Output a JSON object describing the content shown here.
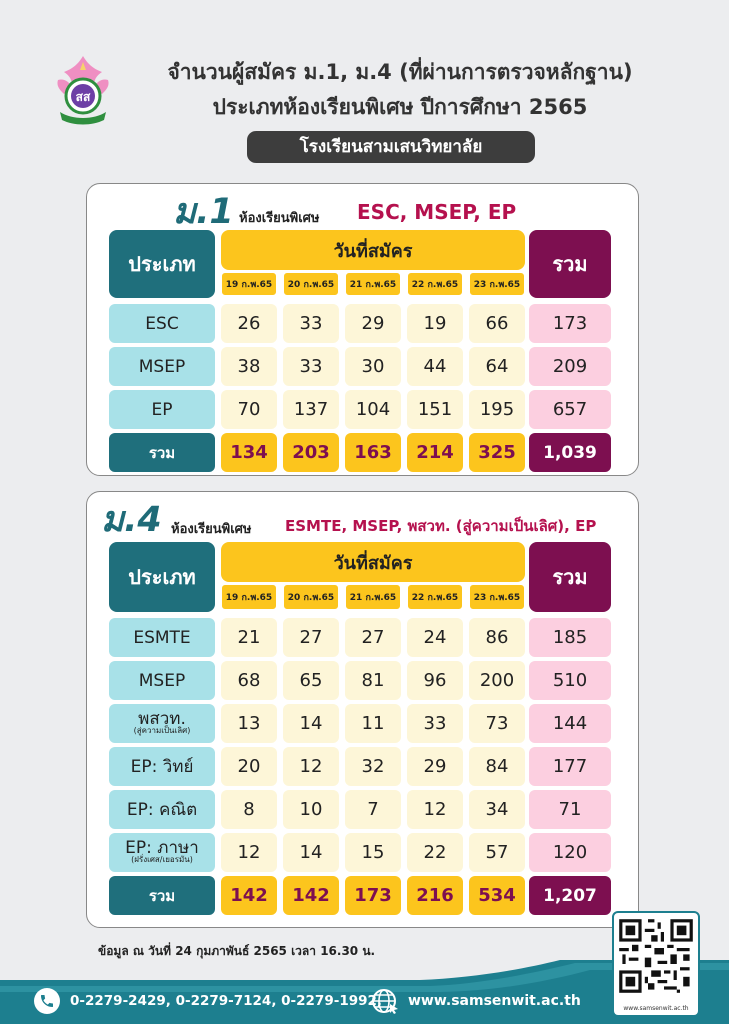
{
  "header": {
    "title_line1": "จำนวนผู้สมัคร ม.1, ม.4 (ที่ผ่านการตรวจหลักฐาน)",
    "title_line2": "ประเภทห้องเรียนพิเศษ ปีการศึกษา 2565",
    "school": "โรงเรียนสามเสนวิทยาลัย"
  },
  "m1": {
    "level": "ม.1",
    "subtitle": "ห้องเรียนพิเศษ",
    "programs": "ESC, MSEP, EP",
    "type_header": "ประเภท",
    "date_header": "วันที่สมัคร",
    "total_header": "รวม",
    "dates": [
      "19 ก.พ.65",
      "20 ก.พ.65",
      "21 ก.พ.65",
      "22 ก.พ.65",
      "23 ก.พ.65"
    ],
    "rows": [
      {
        "label": "ESC",
        "sub": "",
        "values": [
          "26",
          "33",
          "29",
          "19",
          "66"
        ],
        "total": "173"
      },
      {
        "label": "MSEP",
        "sub": "",
        "values": [
          "38",
          "33",
          "30",
          "44",
          "64"
        ],
        "total": "209"
      },
      {
        "label": "EP",
        "sub": "",
        "values": [
          "70",
          "137",
          "104",
          "151",
          "195"
        ],
        "total": "657"
      }
    ],
    "footer": {
      "label": "รวม",
      "values": [
        "134",
        "203",
        "163",
        "214",
        "325"
      ],
      "total": "1,039"
    }
  },
  "m4": {
    "level": "ม.4",
    "subtitle": "ห้องเรียนพิเศษ",
    "programs": "ESMTE, MSEP, พสวท. (สู่ความเป็นเลิศ), EP",
    "type_header": "ประเภท",
    "date_header": "วันที่สมัคร",
    "total_header": "รวม",
    "dates": [
      "19 ก.พ.65",
      "20 ก.พ.65",
      "21 ก.พ.65",
      "22 ก.พ.65",
      "23 ก.พ.65"
    ],
    "rows": [
      {
        "label": "ESMTE",
        "sub": "",
        "values": [
          "21",
          "27",
          "27",
          "24",
          "86"
        ],
        "total": "185"
      },
      {
        "label": "MSEP",
        "sub": "",
        "values": [
          "68",
          "65",
          "81",
          "96",
          "200"
        ],
        "total": "510"
      },
      {
        "label": "พสวท.",
        "sub": "(สู่ความเป็นเลิศ)",
        "values": [
          "13",
          "14",
          "11",
          "33",
          "73"
        ],
        "total": "144"
      },
      {
        "label": "EP: วิทย์",
        "sub": "",
        "values": [
          "20",
          "12",
          "32",
          "29",
          "84"
        ],
        "total": "177"
      },
      {
        "label": "EP: คณิต",
        "sub": "",
        "values": [
          "8",
          "10",
          "7",
          "12",
          "34"
        ],
        "total": "71"
      },
      {
        "label": "EP: ภาษา",
        "sub": "(ฝรั่งเศส/เยอรมัน)",
        "values": [
          "12",
          "14",
          "15",
          "22",
          "57"
        ],
        "total": "120"
      }
    ],
    "footer": {
      "label": "รวม",
      "values": [
        "142",
        "142",
        "173",
        "216",
        "534"
      ],
      "total": "1,207"
    }
  },
  "note": "ข้อมูล ณ วันที่ 24 กุมภาพันธ์ 2565 เวลา 16.30 น.",
  "contact": {
    "phones": "0-2279-2429, 0-2279-7124, 0-2279-1992,",
    "website": "www.samsenwit.ac.th",
    "qr_url": "www.samsenwit.ac.th"
  },
  "icons": {
    "phone": "phone-icon",
    "web": "globe-icon",
    "qr": "qr-code-icon",
    "logo": "school-emblem-icon"
  },
  "colors": {
    "teal": "#1f6f7c",
    "light_teal": "#a8e1e8",
    "yellow": "#fcc51d",
    "cream": "#fdf6d8",
    "magenta": "#7d0f50",
    "pink": "#fccfe0"
  }
}
